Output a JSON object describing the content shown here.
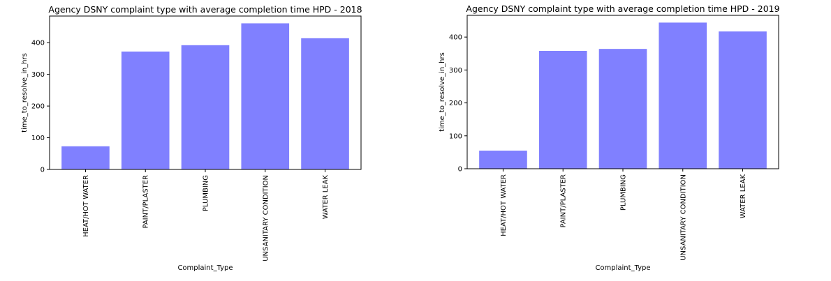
{
  "chart_data": [
    {
      "type": "bar",
      "title": "Agency DSNY complaint type with average completion time HPD - 2018",
      "xlabel": "Complaint_Type",
      "ylabel": "time_to_resolve_in_hrs",
      "categories": [
        "HEAT/HOT WATER",
        "PAINT/PLASTER",
        "PLUMBING",
        "UNSANITARY CONDITION",
        "WATER LEAK"
      ],
      "values": [
        73,
        372,
        392,
        461,
        414
      ],
      "ylim": [
        0,
        484
      ],
      "yticks": [
        0,
        100,
        200,
        300,
        400
      ],
      "bar_color": "#8080ff",
      "grid": false
    },
    {
      "type": "bar",
      "title": "Agency DSNY complaint type with average completion time HPD - 2019",
      "xlabel": "Complaint_Type",
      "ylabel": "time_to_resolve_in_hrs",
      "categories": [
        "HEAT/HOT WATER",
        "PAINT/PLASTER",
        "PLUMBING",
        "UNSANITARY CONDITION",
        "WATER LEAK"
      ],
      "values": [
        55,
        358,
        364,
        444,
        417
      ],
      "ylim": [
        0,
        466
      ],
      "yticks": [
        0,
        100,
        200,
        300,
        400
      ],
      "bar_color": "#8080ff",
      "grid": false
    }
  ]
}
